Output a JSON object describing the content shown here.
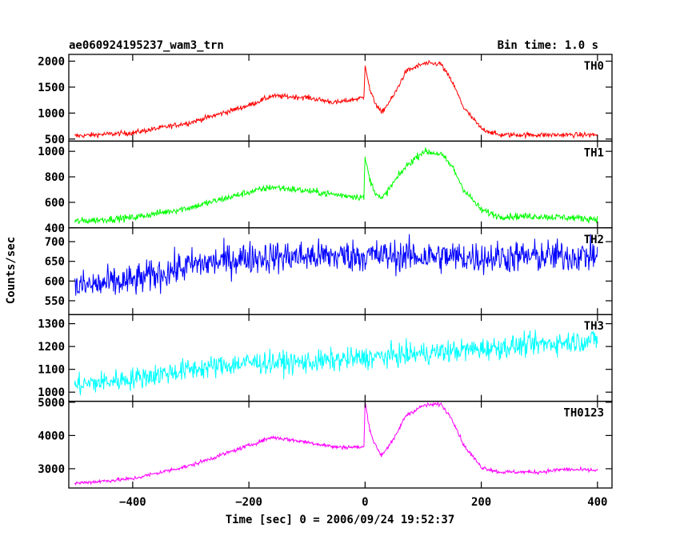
{
  "header": {
    "title": "ae060924195237_wam3_trn",
    "bin_time": "Bin time: 1.0 s"
  },
  "chart_data": {
    "type": "line",
    "title": "ae060924195237_wam3_trn",
    "subtitle": "Bin time: 1.0 s",
    "xlabel": "Time [sec] 0 = 2006/09/24 19:52:37",
    "ylabel": "Counts/sec",
    "xlim": [
      -510,
      425
    ],
    "x_ticks": [
      -400,
      -200,
      0,
      200,
      400
    ],
    "x_tick_labels": [
      "−400",
      "−200",
      "0",
      "200",
      "400"
    ],
    "x_data_range": [
      -500,
      400
    ],
    "grid": false,
    "panels": [
      {
        "name": "TH0",
        "color": "#ff0000",
        "ylim": [
          460,
          2130
        ],
        "yticks": [
          500,
          1000,
          1500,
          2000
        ],
        "noise": 45,
        "keypoints": [
          [
            -500,
            560
          ],
          [
            -400,
            620
          ],
          [
            -300,
            820
          ],
          [
            -200,
            1150
          ],
          [
            -160,
            1330
          ],
          [
            -100,
            1300
          ],
          [
            -50,
            1200
          ],
          [
            -2,
            1300
          ],
          [
            0,
            1950
          ],
          [
            8,
            1450
          ],
          [
            15,
            1250
          ],
          [
            28,
            1000
          ],
          [
            50,
            1350
          ],
          [
            70,
            1800
          ],
          [
            100,
            1950
          ],
          [
            130,
            1950
          ],
          [
            150,
            1600
          ],
          [
            170,
            1100
          ],
          [
            200,
            700
          ],
          [
            230,
            580
          ],
          [
            300,
            580
          ],
          [
            400,
            580
          ]
        ]
      },
      {
        "name": "TH1",
        "color": "#00ff00",
        "ylim": [
          400,
          1080
        ],
        "yticks": [
          400,
          600,
          800,
          1000
        ],
        "noise": 25,
        "keypoints": [
          [
            -500,
            450
          ],
          [
            -400,
            480
          ],
          [
            -300,
            560
          ],
          [
            -200,
            680
          ],
          [
            -160,
            720
          ],
          [
            -100,
            690
          ],
          [
            -50,
            660
          ],
          [
            -2,
            640
          ],
          [
            0,
            950
          ],
          [
            8,
            780
          ],
          [
            15,
            700
          ],
          [
            28,
            620
          ],
          [
            50,
            760
          ],
          [
            70,
            880
          ],
          [
            100,
            1000
          ],
          [
            130,
            980
          ],
          [
            150,
            880
          ],
          [
            170,
            700
          ],
          [
            200,
            540
          ],
          [
            230,
            490
          ],
          [
            300,
            490
          ],
          [
            400,
            470
          ]
        ]
      },
      {
        "name": "TH2",
        "color": "#0000ff",
        "ylim": [
          515,
          735
        ],
        "yticks": [
          550,
          600,
          650,
          700
        ],
        "noise": 38,
        "keypoints": [
          [
            -500,
            585
          ],
          [
            -400,
            600
          ],
          [
            -300,
            640
          ],
          [
            -200,
            660
          ],
          [
            0,
            665
          ],
          [
            200,
            660
          ],
          [
            400,
            665
          ]
        ]
      },
      {
        "name": "TH3",
        "color": "#00ffff",
        "ylim": [
          960,
          1340
        ],
        "yticks": [
          1000,
          1100,
          1200,
          1300
        ],
        "noise": 45,
        "keypoints": [
          [
            -500,
            1030
          ],
          [
            -400,
            1060
          ],
          [
            -300,
            1100
          ],
          [
            -200,
            1130
          ],
          [
            -100,
            1130
          ],
          [
            0,
            1150
          ],
          [
            100,
            1170
          ],
          [
            200,
            1190
          ],
          [
            300,
            1210
          ],
          [
            400,
            1230
          ]
        ]
      },
      {
        "name": "TH0123",
        "color": "#ff00ff",
        "ylim": [
          2420,
          5030
        ],
        "yticks": [
          3000,
          4000,
          5000
        ],
        "noise": 55,
        "keypoints": [
          [
            -500,
            2560
          ],
          [
            -400,
            2700
          ],
          [
            -300,
            3100
          ],
          [
            -200,
            3700
          ],
          [
            -160,
            3950
          ],
          [
            -100,
            3800
          ],
          [
            -50,
            3650
          ],
          [
            -2,
            3650
          ],
          [
            0,
            5000
          ],
          [
            8,
            4200
          ],
          [
            15,
            3800
          ],
          [
            28,
            3400
          ],
          [
            50,
            3900
          ],
          [
            70,
            4600
          ],
          [
            100,
            4900
          ],
          [
            130,
            4950
          ],
          [
            150,
            4500
          ],
          [
            170,
            3700
          ],
          [
            200,
            3050
          ],
          [
            230,
            2900
          ],
          [
            300,
            2900
          ],
          [
            340,
            2980
          ],
          [
            400,
            2950
          ]
        ]
      }
    ]
  }
}
